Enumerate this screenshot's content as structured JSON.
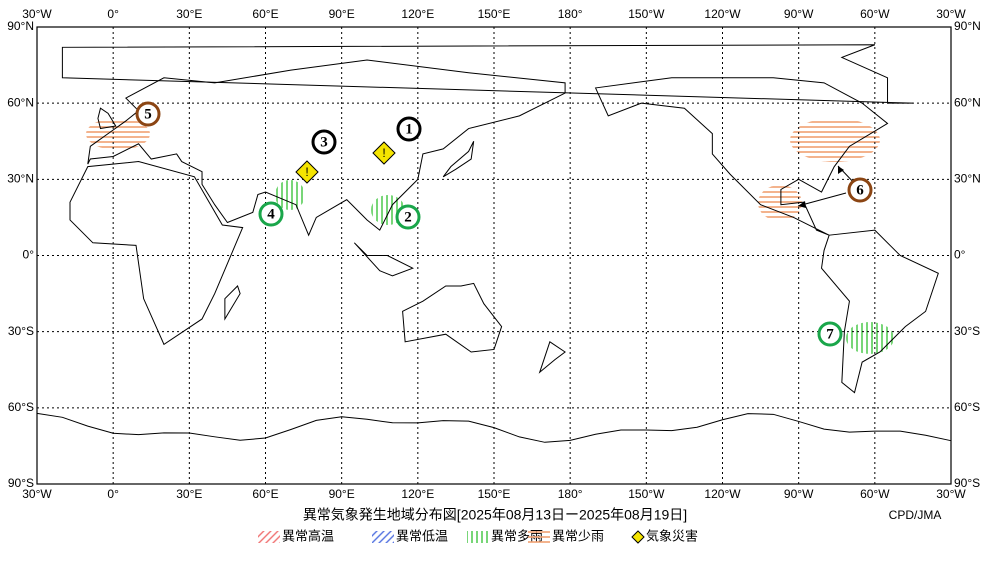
{
  "map": {
    "lon_labels": [
      "30°W",
      "0°",
      "30°E",
      "60°E",
      "90°E",
      "120°E",
      "150°E",
      "180°",
      "150°W",
      "120°W",
      "90°W",
      "60°W",
      "30°W"
    ],
    "lat_labels": [
      "90°N",
      "60°N",
      "30°N",
      "0°",
      "30°S",
      "60°S",
      "90°S"
    ],
    "markers": [
      "1",
      "2",
      "3",
      "4",
      "5",
      "6",
      "7"
    ],
    "warnings": [
      "!",
      "!"
    ],
    "title": "異常気象発生地域分布図[2025年08月13日ー2025年08月19日]",
    "credit": "CPD/JMA",
    "legend": [
      "異常高温",
      "異常低温",
      "異常多雨",
      "異常少雨",
      "気象災害"
    ]
  }
}
